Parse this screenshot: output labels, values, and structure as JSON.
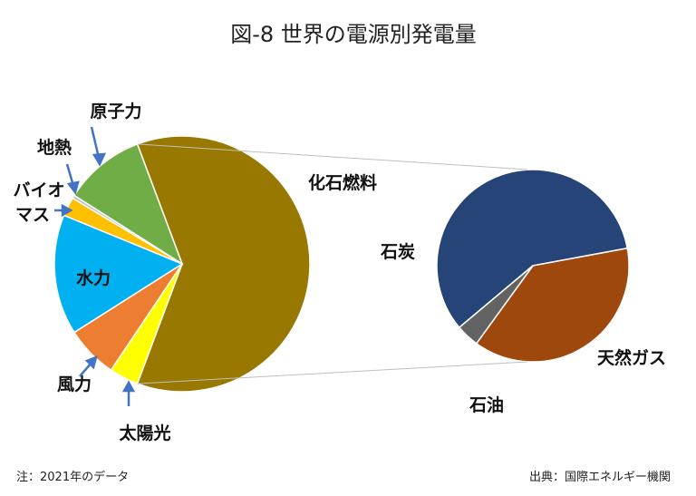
{
  "chart_data": {
    "type": "pie",
    "title": "図-8 世界の電源別発電量",
    "main_pie": {
      "slices": [
        {
          "label": "化石燃料",
          "value": 61.4,
          "color": "#997800"
        },
        {
          "label": "太陽光",
          "value": 3.7,
          "color": "#ffff00"
        },
        {
          "label": "風力",
          "value": 6.6,
          "color": "#ed7d31"
        },
        {
          "label": "水力",
          "value": 15.2,
          "color": "#00b0f0"
        },
        {
          "label": "バイオマス",
          "value": 2.4,
          "color": "#ffc000"
        },
        {
          "label": "地熱",
          "value": 0.4,
          "color": "#c0c0c0"
        },
        {
          "label": "原子力",
          "value": 10.3,
          "color": "#70ad47"
        }
      ]
    },
    "breakdown_pie": {
      "of": "化石燃料",
      "slices": [
        {
          "label": "石炭",
          "value": 58.2,
          "color": "#264478"
        },
        {
          "label": "天然ガス",
          "value": 37.9,
          "color": "#9e480e"
        },
        {
          "label": "石油",
          "value": 3.9,
          "color": "#636363"
        }
      ]
    },
    "bioenergy_label_lines": [
      "バイオ",
      "マス"
    ]
  },
  "footer": {
    "note": "注：2021年のデータ",
    "source": "出典：国際エネルギー機関"
  }
}
